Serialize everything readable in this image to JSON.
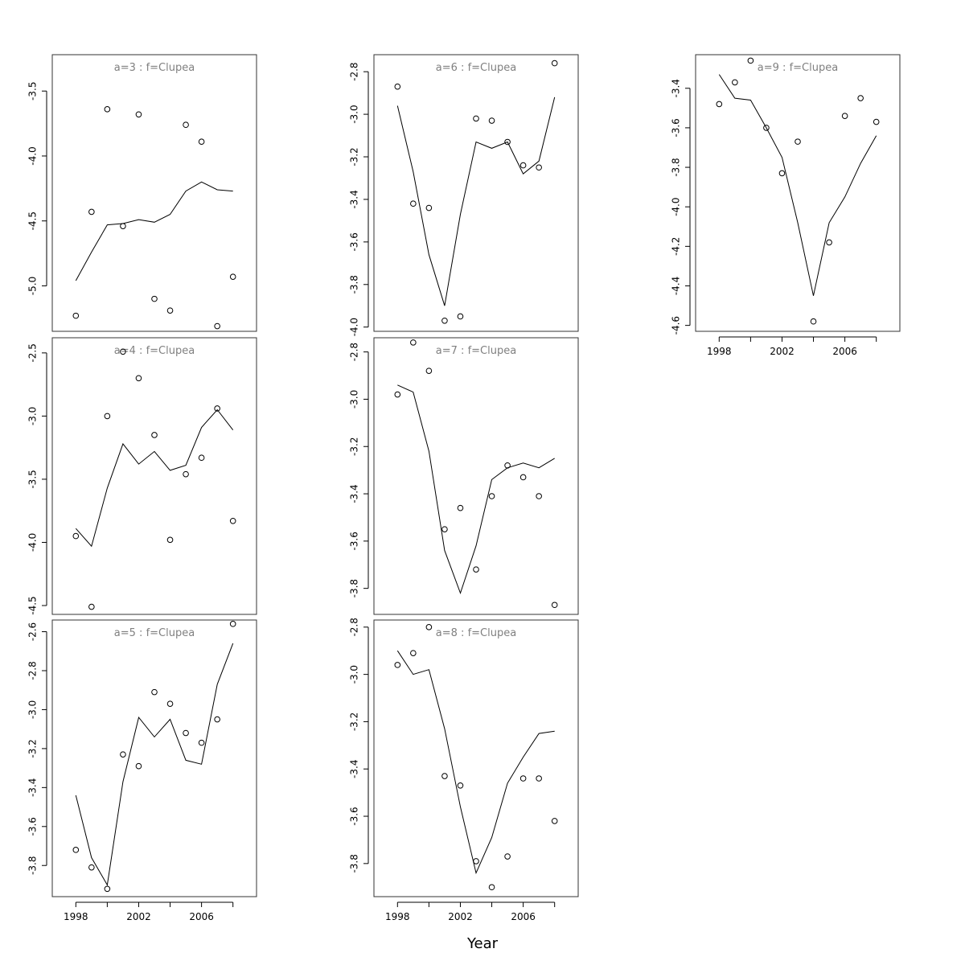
{
  "xlabel": "Year",
  "chart_data": [
    {
      "type": "scatter",
      "title": "a=3  :  f=Clupea",
      "x": [
        1998,
        1999,
        2000,
        2001,
        2002,
        2003,
        2004,
        2005,
        2006,
        2007,
        2008
      ],
      "points": [
        -5.23,
        -4.43,
        -3.64,
        -4.54,
        -3.68,
        -5.1,
        -5.19,
        -3.76,
        -3.89,
        -5.31,
        -4.93
      ],
      "line": [
        -4.96,
        -4.74,
        -4.53,
        -4.52,
        -4.49,
        -4.51,
        -4.45,
        -4.27,
        -4.2,
        -4.26,
        -4.27
      ],
      "yticks": [
        -5.0,
        -4.5,
        -4.0,
        -3.5
      ],
      "ylim": [
        -5.35,
        -3.22
      ]
    },
    {
      "type": "scatter",
      "title": "a=4  :  f=Clupea",
      "x": [
        1998,
        1999,
        2000,
        2001,
        2002,
        2003,
        2004,
        2005,
        2006,
        2007,
        2008
      ],
      "points": [
        -3.95,
        -4.51,
        -3.0,
        -2.49,
        -2.7,
        -3.15,
        -3.98,
        -3.46,
        -3.33,
        -2.94,
        -3.83
      ],
      "line": [
        -3.89,
        -4.03,
        -3.57,
        -3.22,
        -3.38,
        -3.28,
        -3.43,
        -3.39,
        -3.09,
        -2.95,
        -3.11
      ],
      "yticks": [
        -4.5,
        -4.0,
        -3.5,
        -3.0,
        -2.5
      ],
      "ylim": [
        -4.57,
        -2.38
      ]
    },
    {
      "type": "scatter",
      "title": "a=5  :  f=Clupea",
      "x": [
        1998,
        1999,
        2000,
        2001,
        2002,
        2003,
        2004,
        2005,
        2006,
        2007,
        2008
      ],
      "points": [
        -3.72,
        -3.81,
        -3.92,
        -3.23,
        -3.29,
        -2.91,
        -2.97,
        -3.12,
        -3.17,
        -3.05,
        -2.56
      ],
      "line": [
        -3.44,
        -3.76,
        -3.9,
        -3.37,
        -3.04,
        -3.14,
        -3.05,
        -3.26,
        -3.28,
        -2.87,
        -2.66
      ],
      "yticks": [
        -3.8,
        -3.6,
        -3.4,
        -3.2,
        -3.0,
        -2.8,
        -2.6
      ],
      "ylim": [
        -3.96,
        -2.54
      ]
    },
    {
      "type": "scatter",
      "title": "a=6  :  f=Clupea",
      "x": [
        1998,
        1999,
        2000,
        2001,
        2002,
        2003,
        2004,
        2005,
        2006,
        2007,
        2008
      ],
      "points": [
        -2.87,
        -3.42,
        -3.44,
        -3.97,
        -3.95,
        -3.02,
        -3.03,
        -3.13,
        -3.24,
        -3.25,
        -2.76
      ],
      "line": [
        -2.96,
        -3.27,
        -3.66,
        -3.9,
        -3.47,
        -3.13,
        -3.16,
        -3.13,
        -3.28,
        -3.22,
        -2.92
      ],
      "yticks": [
        -4.0,
        -3.8,
        -3.6,
        -3.4,
        -3.2,
        -3.0,
        -2.8
      ],
      "ylim": [
        -4.02,
        -2.72
      ]
    },
    {
      "type": "scatter",
      "title": "a=7  :  f=Clupea",
      "x": [
        1998,
        1999,
        2000,
        2001,
        2002,
        2003,
        2004,
        2005,
        2006,
        2007,
        2008
      ],
      "points": [
        -2.98,
        -2.76,
        -2.88,
        -3.55,
        -3.46,
        -3.72,
        -3.41,
        -3.28,
        -3.33,
        -3.41,
        -3.87
      ],
      "line": [
        -2.94,
        -2.97,
        -3.22,
        -3.64,
        -3.82,
        -3.62,
        -3.34,
        -3.29,
        -3.27,
        -3.29,
        -3.25
      ],
      "yticks": [
        -3.8,
        -3.6,
        -3.4,
        -3.2,
        -3.0,
        -2.8
      ],
      "ylim": [
        -3.91,
        -2.74
      ]
    },
    {
      "type": "scatter",
      "title": "a=8  :  f=Clupea",
      "x": [
        1998,
        1999,
        2000,
        2001,
        2002,
        2003,
        2004,
        2005,
        2006,
        2007,
        2008
      ],
      "points": [
        -2.96,
        -2.91,
        -2.8,
        -3.43,
        -3.47,
        -3.79,
        -3.9,
        -3.77,
        -3.44,
        -3.44,
        -3.62
      ],
      "line": [
        -2.9,
        -3.0,
        -2.98,
        -3.23,
        -3.56,
        -3.84,
        -3.69,
        -3.46,
        -3.35,
        -3.25,
        -3.24
      ],
      "yticks": [
        -3.8,
        -3.6,
        -3.4,
        -3.2,
        -3.0,
        -2.8
      ],
      "ylim": [
        -3.94,
        -2.77
      ]
    },
    {
      "type": "scatter",
      "title": "a=9  :  f=Clupea",
      "x": [
        1998,
        1999,
        2000,
        2001,
        2002,
        2003,
        2004,
        2005,
        2006,
        2007,
        2008
      ],
      "points": [
        -3.48,
        -3.37,
        -3.26,
        -3.6,
        -3.83,
        -3.67,
        -4.58,
        -4.18,
        -3.54,
        -3.45,
        -3.57
      ],
      "line": [
        -3.33,
        -3.45,
        -3.46,
        -3.6,
        -3.75,
        -4.08,
        -4.45,
        -4.08,
        -3.95,
        -3.78,
        -3.64
      ],
      "yticks": [
        -4.6,
        -4.4,
        -4.2,
        -4.0,
        -3.8,
        -3.6,
        -3.4
      ],
      "ylim": [
        -4.63,
        -3.23
      ]
    }
  ],
  "xaxis": {
    "range": [
      1996.5,
      2009.5
    ],
    "ticks": [
      1998,
      2002,
      2006
    ]
  },
  "layout_note": ""
}
